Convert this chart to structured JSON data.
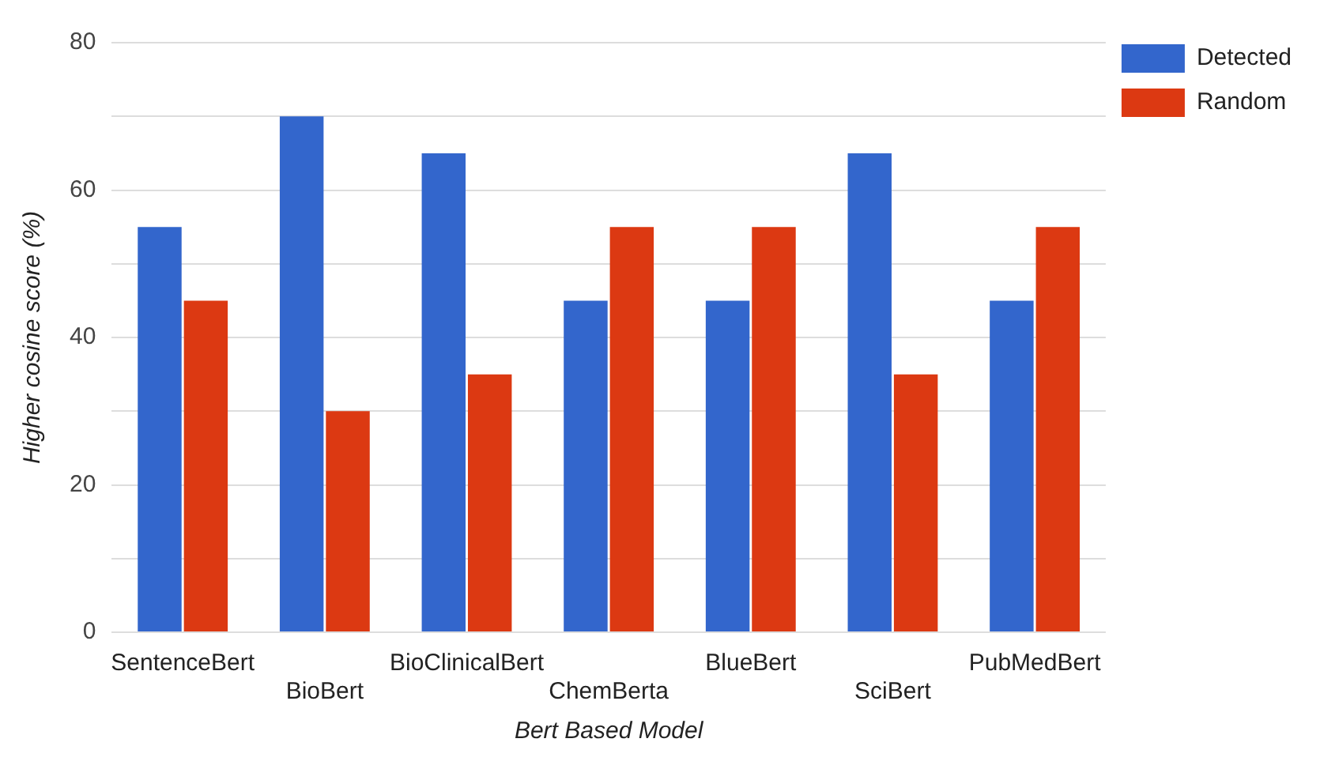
{
  "chart_data": {
    "type": "bar",
    "xlabel": "Bert Based Model",
    "ylabel": "Higher cosine score (%)",
    "categories": [
      "SentenceBert",
      "BioBert",
      "BioClinicalBert",
      "ChemBerta",
      "BlueBert",
      "SciBert",
      "PubMedBert"
    ],
    "series": [
      {
        "name": "Detected",
        "color": "#3366cc",
        "values": [
          55,
          70,
          65,
          45,
          45,
          65,
          45
        ]
      },
      {
        "name": "Random",
        "color": "#dc3912",
        "values": [
          45,
          30,
          35,
          55,
          55,
          35,
          55
        ]
      }
    ],
    "ylim": [
      0,
      80
    ],
    "yticks": [
      0,
      {
        "value": 10,
        "label": null
      },
      20,
      {
        "value": 30,
        "label": null
      },
      40,
      {
        "value": 50,
        "label": null
      },
      60,
      {
        "value": 70,
        "label": null
      },
      80
    ],
    "grid": "y",
    "legend": "top right"
  }
}
